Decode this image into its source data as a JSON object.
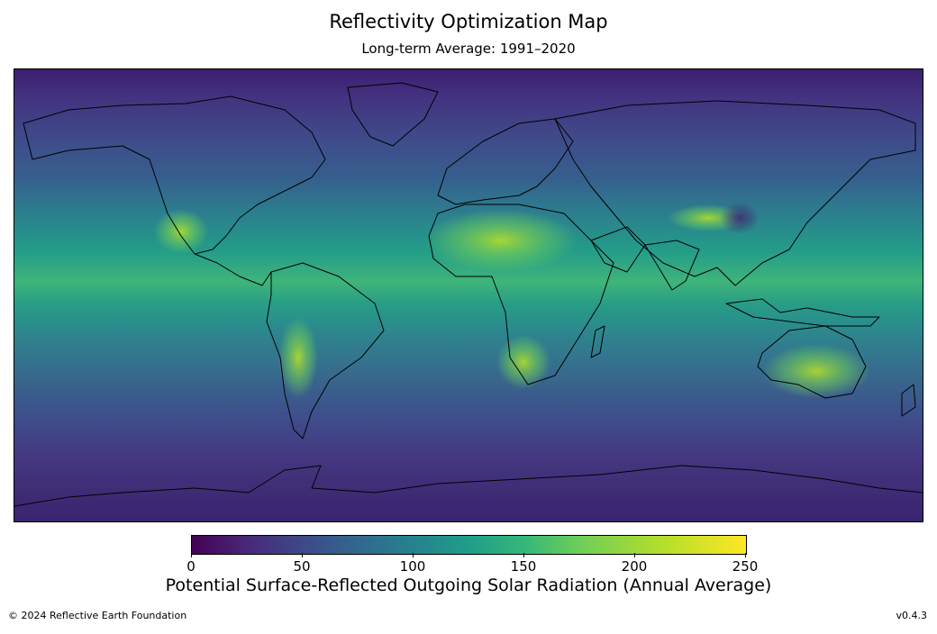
{
  "title": "Reflectivity Optimization Map",
  "subtitle": "Long-term Average: 1991–2020",
  "colorbar": {
    "label": "Potential Surface-Reflected Outgoing Solar Radiation (Annual Average)",
    "ticks": [
      "0",
      "50",
      "100",
      "150",
      "200",
      "250"
    ],
    "range": [
      0,
      250
    ],
    "colormap": "viridis"
  },
  "footer": {
    "copyright": "© 2024 Reflective Earth Foundation",
    "version": "v0.4.3"
  }
}
